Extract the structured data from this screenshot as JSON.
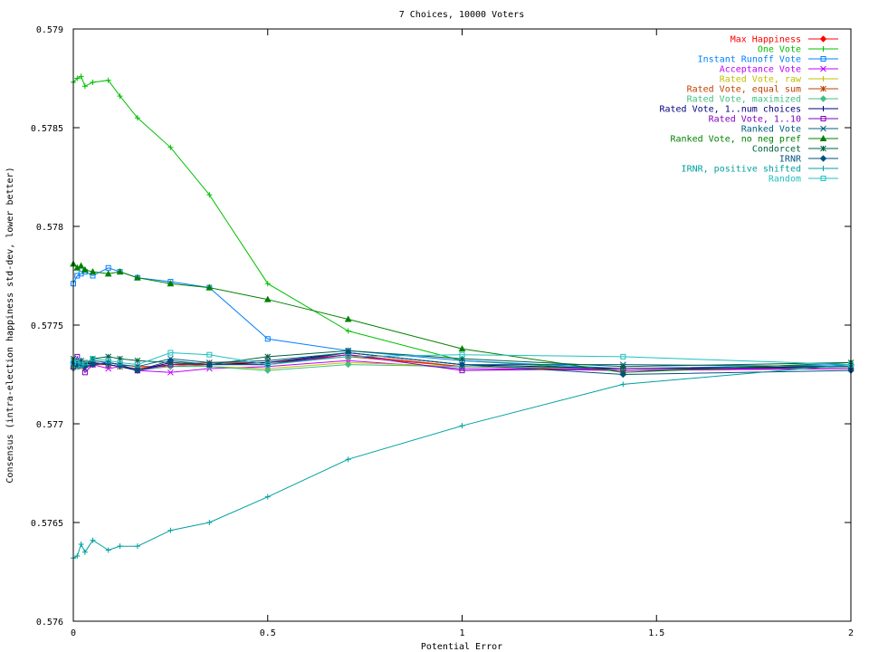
{
  "chart_data": {
    "type": "line",
    "title": "7 Choices, 10000 Voters",
    "xlabel": "Potential Error",
    "ylabel": "Consensus (intra-election happiness std-dev, lower better)",
    "xlim": [
      0,
      2
    ],
    "ylim": [
      0.576,
      0.579
    ],
    "xticks": [
      0,
      0.5,
      1,
      1.5,
      2
    ],
    "xtick_labels": [
      "0",
      "0.5",
      "1",
      "1.5",
      "2"
    ],
    "yticks": [
      0.576,
      0.5765,
      0.577,
      0.5775,
      0.578,
      0.5785,
      0.579
    ],
    "ytick_labels": [
      "0.576",
      "0.5765",
      "0.577",
      "0.5775",
      "0.578",
      "0.5785",
      "0.579"
    ],
    "grid": false,
    "legend_position": "top-right",
    "x": [
      0,
      0.01,
      0.02,
      0.03,
      0.05,
      0.09,
      0.12,
      0.165,
      0.25,
      0.35,
      0.5,
      0.707,
      1,
      1.414,
      2
    ],
    "series": [
      {
        "name": "Max Happiness",
        "color": "#ff0000",
        "marker": "diamond",
        "values": [
          0.57728,
          0.5773,
          0.57731,
          0.57729,
          0.5773,
          0.57731,
          0.5773,
          0.57729,
          0.57729,
          0.5773,
          0.57731,
          0.57735,
          0.57729,
          0.57727,
          0.57728
        ]
      },
      {
        "name": "One Vote",
        "color": "#00c000",
        "marker": "plus",
        "values": [
          0.57873,
          0.57875,
          0.57876,
          0.57871,
          0.57873,
          0.57874,
          0.57866,
          0.57855,
          0.5784,
          0.57816,
          0.57771,
          0.57747,
          0.57732,
          0.57727,
          0.57729
        ]
      },
      {
        "name": "Instant Runoff Vote",
        "color": "#0080ff",
        "marker": "square",
        "values": [
          0.57771,
          0.57775,
          0.57776,
          0.57777,
          0.57775,
          0.57779,
          0.57777,
          0.57774,
          0.57772,
          0.57769,
          0.57743,
          0.57737,
          0.57732,
          0.57728,
          0.5773
        ]
      },
      {
        "name": "Acceptance Vote",
        "color": "#c000ff",
        "marker": "x",
        "values": [
          0.57729,
          0.5773,
          0.57731,
          0.57728,
          0.5773,
          0.57728,
          0.57729,
          0.57727,
          0.57726,
          0.57728,
          0.57729,
          0.57732,
          0.57728,
          0.57727,
          0.57728
        ]
      },
      {
        "name": "Rated Vote, raw",
        "color": "#c0c000",
        "marker": "plus",
        "values": [
          0.5773,
          0.57731,
          0.57729,
          0.5773,
          0.57731,
          0.5773,
          0.57729,
          0.57728,
          0.5773,
          0.57729,
          0.57728,
          0.57731,
          0.57729,
          0.57728,
          0.57729
        ]
      },
      {
        "name": "Rated Vote, equal sum",
        "color": "#c04000",
        "marker": "star",
        "values": [
          0.57729,
          0.5773,
          0.57729,
          0.57731,
          0.5773,
          0.5773,
          0.57729,
          0.57728,
          0.5773,
          0.57731,
          0.57731,
          0.57734,
          0.57729,
          0.57728,
          0.57729
        ]
      },
      {
        "name": "Rated Vote, maximized",
        "color": "#40c080",
        "marker": "diamond",
        "values": [
          0.57728,
          0.57729,
          0.5773,
          0.57729,
          0.57731,
          0.5773,
          0.57729,
          0.57727,
          0.57729,
          0.57729,
          0.57727,
          0.5773,
          0.57729,
          0.57728,
          0.57729
        ]
      },
      {
        "name": "Rated Vote, 1..num choices",
        "color": "#000080",
        "marker": "plus",
        "values": [
          0.5773,
          0.57731,
          0.57732,
          0.5773,
          0.57731,
          0.5773,
          0.57729,
          0.57727,
          0.57731,
          0.5773,
          0.57731,
          0.57736,
          0.5773,
          0.57728,
          0.57729
        ]
      },
      {
        "name": "Rated Vote, 1..10",
        "color": "#8000c0",
        "marker": "square",
        "values": [
          0.57729,
          0.57734,
          0.5773,
          0.57726,
          0.5773,
          0.57731,
          0.5773,
          0.57727,
          0.5773,
          0.5773,
          0.5773,
          0.57735,
          0.57727,
          0.57728,
          0.57728
        ]
      },
      {
        "name": "Ranked Vote",
        "color": "#006080",
        "marker": "x",
        "values": [
          0.5773,
          0.57731,
          0.57729,
          0.5773,
          0.57732,
          0.57731,
          0.5773,
          0.57729,
          0.57733,
          0.57731,
          0.57732,
          0.57736,
          0.5773,
          0.5773,
          0.57729
        ]
      },
      {
        "name": "Ranked Vote, no neg pref",
        "color": "#008000",
        "marker": "triangle",
        "values": [
          0.57781,
          0.57779,
          0.5778,
          0.57778,
          0.57777,
          0.57776,
          0.57777,
          0.57774,
          0.57771,
          0.57769,
          0.57763,
          0.57753,
          0.57738,
          0.57726,
          0.57731
        ]
      },
      {
        "name": "Condorcet",
        "color": "#006040",
        "marker": "star",
        "values": [
          0.57733,
          0.57731,
          0.57732,
          0.5773,
          0.57733,
          0.57734,
          0.57733,
          0.57732,
          0.57731,
          0.5773,
          0.57734,
          0.57737,
          0.57733,
          0.57729,
          0.57731
        ]
      },
      {
        "name": "IRNR",
        "color": "#005080",
        "marker": "diamond",
        "values": [
          0.57731,
          0.5773,
          0.57731,
          0.57729,
          0.5773,
          0.57731,
          0.5773,
          0.57727,
          0.57732,
          0.5773,
          0.5773,
          0.57736,
          0.5773,
          0.57725,
          0.57727
        ]
      },
      {
        "name": "IRNR, positive shifted",
        "color": "#00a0a0",
        "marker": "plus",
        "values": [
          0.57632,
          0.57633,
          0.57639,
          0.57635,
          0.57641,
          0.57636,
          0.57638,
          0.57638,
          0.57646,
          0.5765,
          0.57663,
          0.57682,
          0.57699,
          0.5772,
          0.5773
        ]
      },
      {
        "name": "Random",
        "color": "#20c0c0",
        "marker": "square",
        "values": [
          0.57731,
          0.57732,
          0.5773,
          0.57731,
          0.57733,
          0.57732,
          0.57731,
          0.5773,
          0.57736,
          0.57735,
          0.5773,
          0.57734,
          0.57735,
          0.57734,
          0.5773
        ]
      }
    ]
  }
}
